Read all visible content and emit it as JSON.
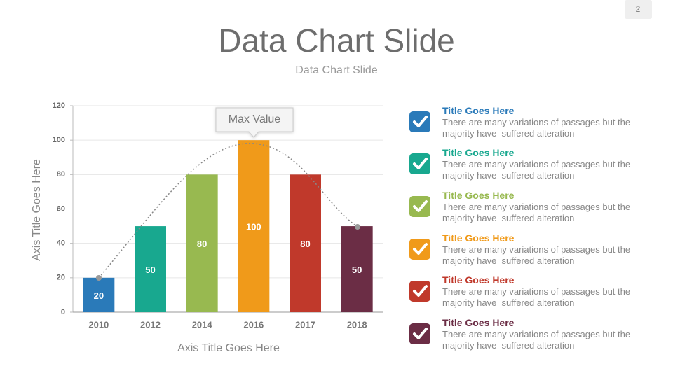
{
  "page_number": "2",
  "title": "Data Chart Slide",
  "subtitle": "Data Chart Slide",
  "chart_data": {
    "type": "bar",
    "categories": [
      "2010",
      "2012",
      "2014",
      "2016",
      "2017",
      "2018"
    ],
    "values": [
      20,
      50,
      80,
      100,
      80,
      50
    ],
    "colors": [
      "#2a7ab9",
      "#18a88f",
      "#98b950",
      "#f09a1a",
      "#c0392b",
      "#6b2d45"
    ],
    "ylim": [
      0,
      120
    ],
    "yticks": [
      0,
      20,
      40,
      60,
      80,
      100,
      120
    ],
    "grid": true,
    "x_label": "Axis Title Goes Here",
    "y_label": "Axis Title Goes Here",
    "annotation": "Max Value"
  },
  "items": [
    {
      "title": "Title Goes Here",
      "text": "There are many variations of passages but the majority have  suffered alteration",
      "color": "#2a7ab9"
    },
    {
      "title": "Title Goes Here",
      "text": "There are many variations of passages but the majority have  suffered alteration",
      "color": "#18a88f"
    },
    {
      "title": "Title Goes Here",
      "text": "There are many variations of passages but the majority have  suffered alteration",
      "color": "#98b950"
    },
    {
      "title": "Title Goes Here",
      "text": "There are many variations of passages but the majority have  suffered alteration",
      "color": "#f09a1a"
    },
    {
      "title": "Title Goes Here",
      "text": "There are many variations of passages but the majority have  suffered alteration",
      "color": "#c0392b"
    },
    {
      "title": "Title Goes Here",
      "text": "There are many variations of passages but the majority have  suffered alteration",
      "color": "#6b2d45"
    }
  ]
}
